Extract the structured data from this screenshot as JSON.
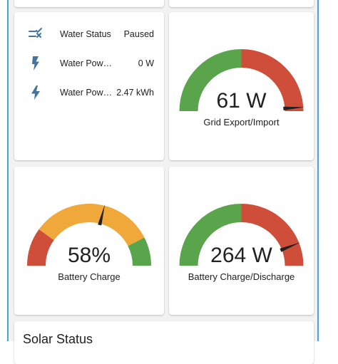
{
  "entities": [
    {
      "icon": "water-status-icon",
      "name": "Water Status",
      "state": "Paused"
    },
    {
      "icon": "flash-icon",
      "name": "Water Power Now",
      "state": "0 W"
    },
    {
      "icon": "flash-icon",
      "name": "Water Powe…",
      "state": "2.47 kWh"
    }
  ],
  "gauges": [
    {
      "name": "grid-export-import",
      "value_text": "61 W",
      "label": "Grid Export/Import",
      "needle_fraction": 0.98,
      "segments": [
        {
          "from": 0,
          "to": 0.5,
          "color": "#5aa44c"
        },
        {
          "from": 0.5,
          "to": 1,
          "color": "#cf4e3a"
        }
      ]
    },
    {
      "name": "battery-charge",
      "value_text": "58%",
      "label": "Battery Charge",
      "needle_fraction": 0.58,
      "segments": [
        {
          "from": 0,
          "to": 0.2,
          "color": "#cf4e3a"
        },
        {
          "from": 0.2,
          "to": 0.85,
          "color": "#f1a83b"
        },
        {
          "from": 0.85,
          "to": 1,
          "color": "#5aa44c"
        }
      ]
    },
    {
      "name": "battery-charge-discharge",
      "value_text": "264 W",
      "label": "Battery Charge/Discharge",
      "needle_fraction": 0.88,
      "segments": [
        {
          "from": 0,
          "to": 0.5,
          "color": "#5aa44c"
        },
        {
          "from": 0.5,
          "to": 1,
          "color": "#cf4e3a"
        }
      ]
    }
  ],
  "section": {
    "title": "Solar Status"
  },
  "colors": {
    "icon": "#44739e",
    "needle": "#212121",
    "frame": "#4aa3df"
  }
}
